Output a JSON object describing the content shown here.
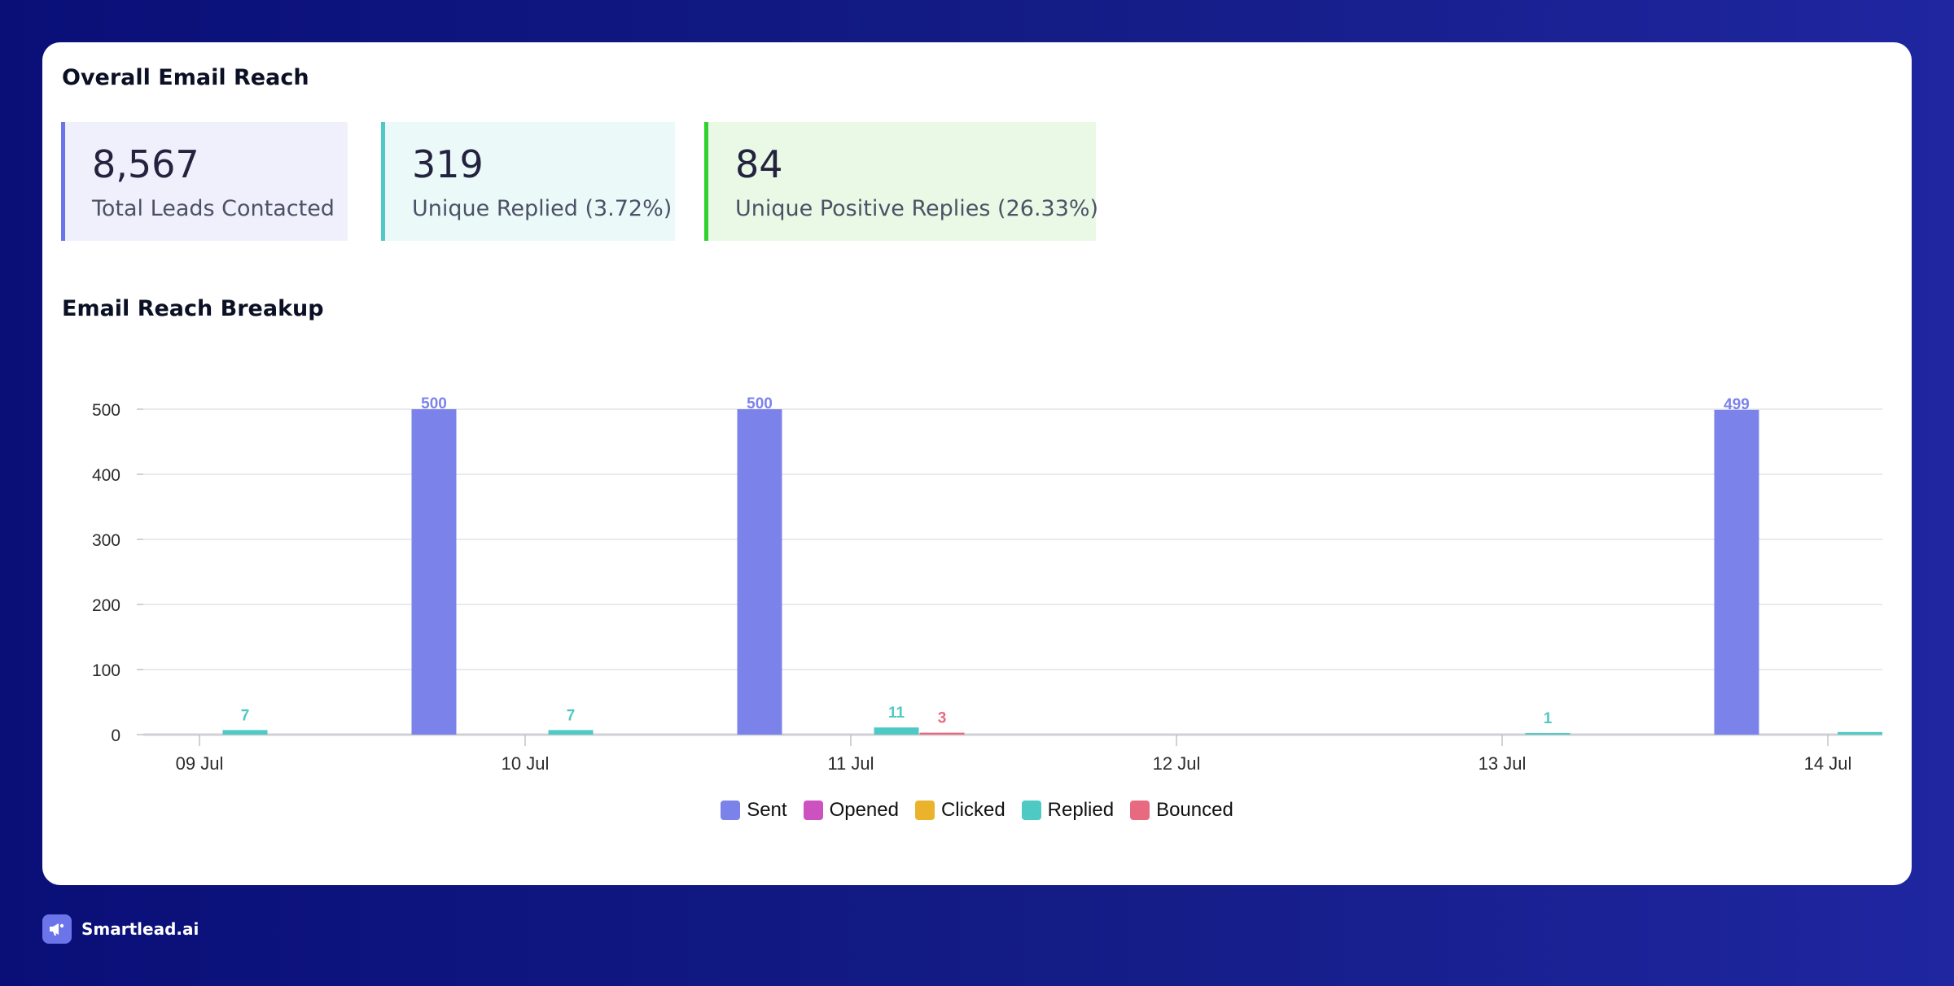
{
  "overall": {
    "title": "Overall Email Reach",
    "stats": [
      {
        "value": "8,567",
        "label": "Total Leads Contacted",
        "accent": "#6b74e8",
        "bg": "#f0f0fc"
      },
      {
        "value": "319",
        "label": "Unique Replied (3.72%)",
        "accent": "#4ec9c4",
        "bg": "#ecf9f9"
      },
      {
        "value": "84",
        "label": "Unique Positive Replies (26.33%)",
        "accent": "#2ed12e",
        "bg": "#eaf9e6"
      }
    ]
  },
  "breakup": {
    "title": "Email Reach Breakup"
  },
  "chart_data": {
    "type": "bar",
    "categories": [
      "09 Jul",
      "10 Jul",
      "11 Jul",
      "12 Jul",
      "13 Jul",
      "14 Jul"
    ],
    "ylim": [
      0,
      500
    ],
    "yticks": [
      0,
      100,
      200,
      300,
      400,
      500
    ],
    "grid": true,
    "legend_position": "bottom-center",
    "series": [
      {
        "name": "Sent",
        "color": "#7b83ea",
        "points": [
          {
            "x": "09 Jul",
            "offset": 0.72,
            "value": 500,
            "label": "500"
          },
          {
            "x": "10 Jul",
            "offset": 0.72,
            "value": 500,
            "label": "500"
          },
          {
            "x": "13 Jul",
            "offset": 0.72,
            "value": 499,
            "label": "499"
          }
        ]
      },
      {
        "name": "Opened",
        "color": "#cc52c0",
        "points": []
      },
      {
        "name": "Clicked",
        "color": "#ebb22c",
        "points": []
      },
      {
        "name": "Replied",
        "color": "#4ec9c4",
        "points": [
          {
            "x": "09 Jul",
            "offset": 0.14,
            "value": 7,
            "label": "7"
          },
          {
            "x": "10 Jul",
            "offset": 0.14,
            "value": 7,
            "label": "7"
          },
          {
            "x": "11 Jul",
            "offset": 0.14,
            "value": 11,
            "label": "11"
          },
          {
            "x": "13 Jul",
            "offset": 0.14,
            "value": 1,
            "label": "1"
          },
          {
            "x": "14 Jul",
            "offset": 0.14,
            "value": 4,
            "label": ""
          }
        ]
      },
      {
        "name": "Bounced",
        "color": "#e86a80",
        "points": [
          {
            "x": "11 Jul",
            "offset": 0.28,
            "value": 3,
            "label": "3"
          }
        ]
      }
    ]
  },
  "brand": {
    "name": "Smartlead.ai"
  }
}
